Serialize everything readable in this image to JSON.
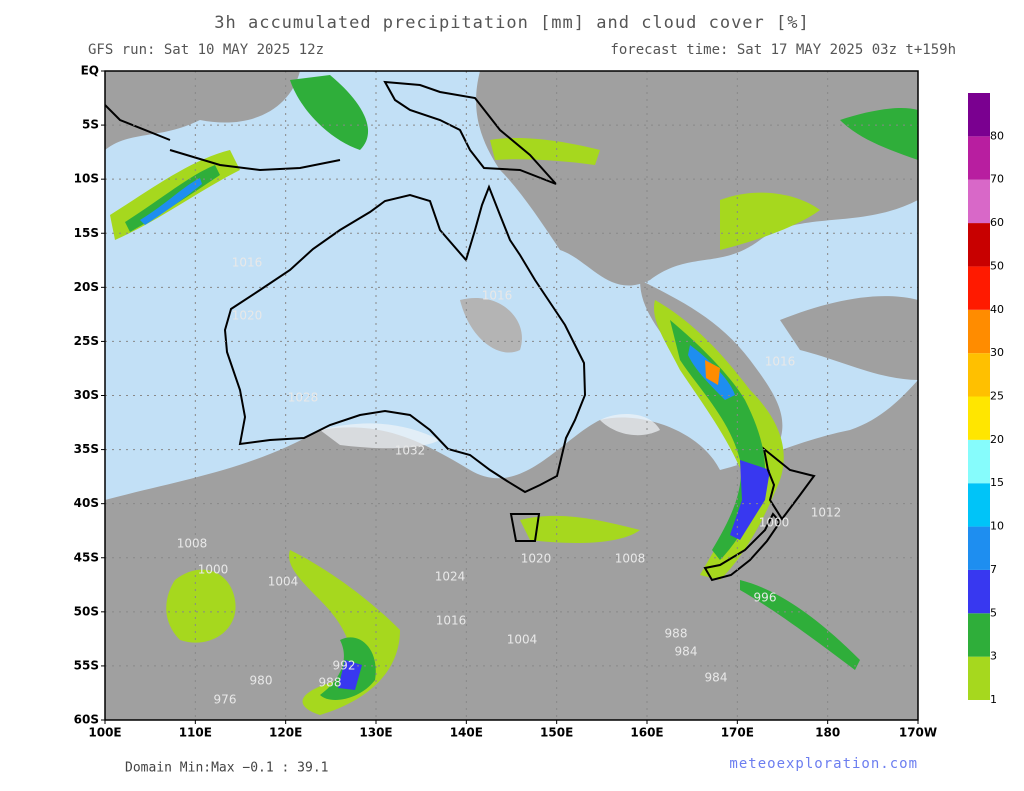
{
  "header": {
    "title": "3h accumulated precipitation [mm] and cloud cover [%]",
    "run": "GFS run: Sat 10 MAY 2025 12z",
    "forecast": "forecast time: Sat 17 MAY 2025 03z  t+159h"
  },
  "map": {
    "lat_labels": [
      "EQ",
      "5S",
      "10S",
      "15S",
      "20S",
      "25S",
      "30S",
      "35S",
      "40S",
      "45S",
      "50S",
      "55S",
      "60S"
    ],
    "lon_labels": [
      "100E",
      "110E",
      "120E",
      "130E",
      "140E",
      "150E",
      "160E",
      "170E",
      "180",
      "170W"
    ],
    "isobars": [
      "1016",
      "1020",
      "1028",
      "1032",
      "1016",
      "1016",
      "1008",
      "1000",
      "1004",
      "1024",
      "1020",
      "1008",
      "1016",
      "1004",
      "1000",
      "1012",
      "996",
      "988",
      "984",
      "992",
      "988",
      "980",
      "976",
      "984"
    ]
  },
  "colorbar": {
    "levels": [
      1,
      3,
      5,
      7,
      10,
      15,
      20,
      25,
      30,
      40,
      50,
      60,
      70,
      80
    ],
    "colors": [
      "#a6d81e",
      "#2fae3a",
      "#3838f0",
      "#1e8ef0",
      "#00c4f8",
      "#86fcfc",
      "#ffe600",
      "#ffc000",
      "#ff8c00",
      "#ff1a00",
      "#c80000",
      "#d868c8",
      "#b81ea0",
      "#7a0090"
    ]
  },
  "footer": {
    "domain": "Domain Min:Max −0.1 : 39.1",
    "credit": "meteoexploration.com"
  }
}
